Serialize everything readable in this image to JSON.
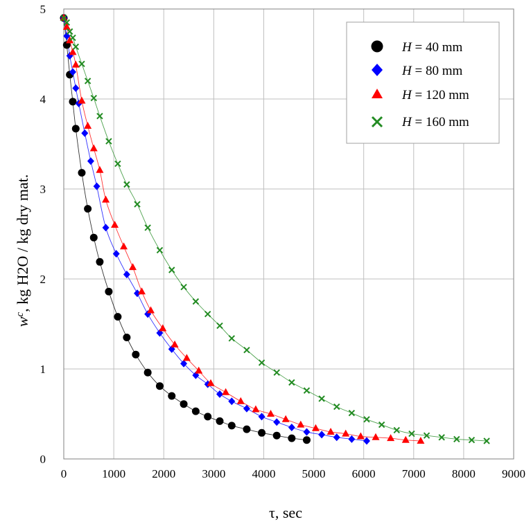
{
  "chart_data": {
    "type": "scatter",
    "title": "",
    "xlabel": "τ, sec",
    "ylabel": "wc, kg H2O / kg dry mat.",
    "xlim": [
      0,
      9000
    ],
    "ylim": [
      0,
      5
    ],
    "xticks": [
      0,
      1000,
      2000,
      3000,
      4000,
      5000,
      6000,
      7000,
      8000,
      9000
    ],
    "yticks": [
      0,
      1,
      2,
      3,
      4,
      5
    ],
    "grid": true,
    "legend_position": "top-right",
    "series": [
      {
        "name": "H = 40 mm",
        "marker": "circle",
        "color": "#000000",
        "x": [
          0,
          60,
          120,
          180,
          240,
          360,
          480,
          600,
          720,
          900,
          1080,
          1260,
          1440,
          1680,
          1920,
          2160,
          2400,
          2640,
          2880,
          3120,
          3360,
          3660,
          3960,
          4260,
          4560,
          4860
        ],
        "y": [
          4.9,
          4.6,
          4.27,
          3.97,
          3.67,
          3.18,
          2.78,
          2.46,
          2.19,
          1.86,
          1.58,
          1.35,
          1.16,
          0.96,
          0.81,
          0.7,
          0.61,
          0.53,
          0.47,
          0.42,
          0.37,
          0.33,
          0.29,
          0.26,
          0.23,
          0.21
        ]
      },
      {
        "name": "H = 80 mm",
        "marker": "diamond",
        "color": "#0000ff",
        "x": [
          0,
          60,
          120,
          180,
          240,
          300,
          420,
          540,
          660,
          840,
          1050,
          1260,
          1470,
          1680,
          1920,
          2160,
          2400,
          2640,
          2880,
          3120,
          3360,
          3660,
          3960,
          4260,
          4560,
          4860,
          5160,
          5460,
          5760,
          6060
        ],
        "y": [
          4.9,
          4.7,
          4.48,
          4.3,
          4.12,
          3.95,
          3.62,
          3.31,
          3.03,
          2.57,
          2.28,
          2.05,
          1.84,
          1.61,
          1.4,
          1.22,
          1.06,
          0.93,
          0.83,
          0.72,
          0.64,
          0.56,
          0.47,
          0.41,
          0.35,
          0.3,
          0.27,
          0.24,
          0.22,
          0.2
        ]
      },
      {
        "name": "H = 120 mm",
        "marker": "triangle",
        "color": "#ff0000",
        "x": [
          0,
          60,
          120,
          180,
          240,
          360,
          480,
          600,
          720,
          840,
          1020,
          1200,
          1380,
          1560,
          1740,
          1980,
          2220,
          2460,
          2700,
          2940,
          3240,
          3540,
          3840,
          4140,
          4440,
          4740,
          5040,
          5340,
          5640,
          5940,
          6240,
          6540,
          6840,
          7140
        ],
        "y": [
          4.9,
          4.8,
          4.65,
          4.52,
          4.38,
          3.98,
          3.7,
          3.45,
          3.21,
          2.88,
          2.6,
          2.36,
          2.13,
          1.86,
          1.65,
          1.45,
          1.27,
          1.12,
          0.98,
          0.84,
          0.74,
          0.64,
          0.55,
          0.5,
          0.44,
          0.38,
          0.34,
          0.3,
          0.28,
          0.25,
          0.24,
          0.23,
          0.21,
          0.2
        ]
      },
      {
        "name": "H = 160 mm",
        "marker": "x",
        "color": "#228b22",
        "x": [
          0,
          60,
          120,
          180,
          240,
          360,
          480,
          600,
          720,
          900,
          1080,
          1260,
          1470,
          1680,
          1920,
          2160,
          2400,
          2640,
          2880,
          3120,
          3360,
          3660,
          3960,
          4260,
          4560,
          4860,
          5160,
          5460,
          5760,
          6060,
          6360,
          6660,
          6960,
          7260,
          7560,
          7860,
          8160,
          8460
        ],
        "y": [
          4.9,
          4.85,
          4.75,
          4.68,
          4.58,
          4.39,
          4.2,
          4.01,
          3.81,
          3.53,
          3.28,
          3.05,
          2.83,
          2.57,
          2.32,
          2.1,
          1.91,
          1.75,
          1.61,
          1.48,
          1.34,
          1.21,
          1.07,
          0.96,
          0.85,
          0.76,
          0.67,
          0.58,
          0.51,
          0.44,
          0.38,
          0.32,
          0.28,
          0.26,
          0.24,
          0.22,
          0.21,
          0.2
        ]
      }
    ]
  },
  "legend": {
    "var": "H",
    "items": [
      {
        "value": " = 40 mm"
      },
      {
        "value": " = 80 mm"
      },
      {
        "value": " = 120 mm"
      },
      {
        "value": " = 160 mm"
      }
    ]
  },
  "axes": {
    "y_title_main": "w",
    "y_title_sup": "c",
    "y_title_rest": ", kg H2O / kg dry mat.",
    "x_title": "τ, sec"
  }
}
